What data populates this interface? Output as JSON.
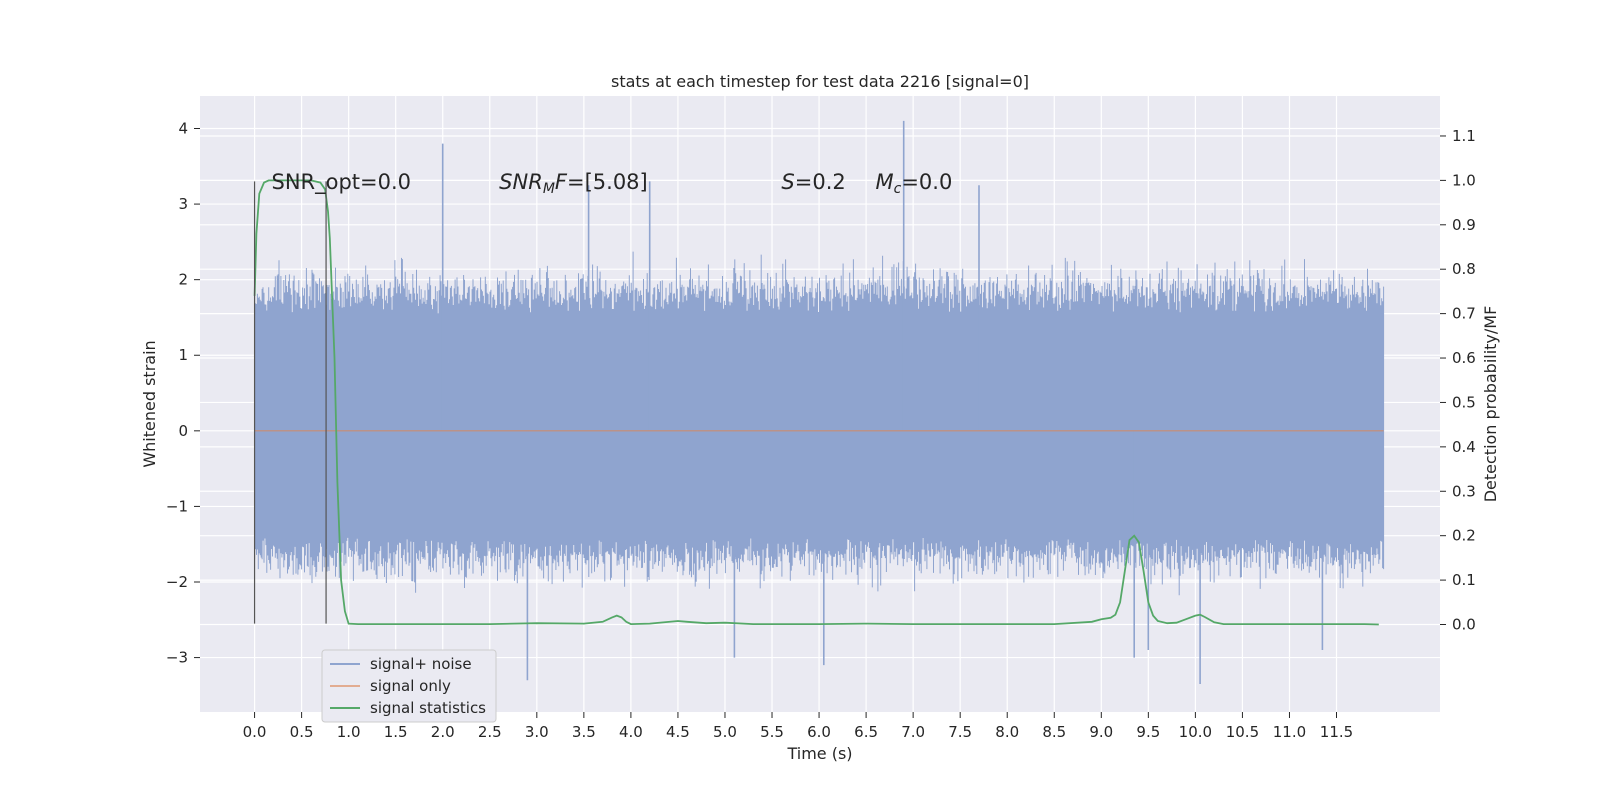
{
  "chart_data": {
    "type": "line",
    "title": "stats at each timestep for test data 2216 [signal=0]",
    "xlabel": "Time (s)",
    "ylabel_left": "Whitened strain",
    "ylabel_right": "Detection probability/MF",
    "xlim": [
      -0.58,
      12.6
    ],
    "ylim_left": [
      -3.72,
      4.43
    ],
    "ylim_right": [
      -0.197,
      1.19
    ],
    "xticks": [
      0.0,
      0.5,
      1.0,
      1.5,
      2.0,
      2.5,
      3.0,
      3.5,
      4.0,
      4.5,
      5.0,
      5.5,
      6.0,
      6.5,
      7.0,
      7.5,
      8.0,
      8.5,
      9.0,
      9.5,
      10.0,
      10.5,
      11.0,
      11.5
    ],
    "xtick_labels": [
      "0.0",
      "0.5",
      "1.0",
      "1.5",
      "2.0",
      "2.5",
      "3.0",
      "3.5",
      "4.0",
      "4.5",
      "5.0",
      "5.5",
      "6.0",
      "6.5",
      "7.0",
      "7.5",
      "8.0",
      "8.5",
      "9.0",
      "9.5",
      "10.0",
      "10.5",
      "11.0",
      "11.5"
    ],
    "yticks_left": [
      -3,
      -2,
      -1,
      0,
      1,
      2,
      3,
      4
    ],
    "ytick_labels_left": [
      "−3",
      "−2",
      "−1",
      "0",
      "1",
      "2",
      "3",
      "4"
    ],
    "yticks_right": [
      0.0,
      0.1,
      0.2,
      0.3,
      0.4,
      0.5,
      0.6,
      0.7,
      0.8,
      0.9,
      1.0,
      1.1
    ],
    "ytick_labels_right": [
      "0.0",
      "0.1",
      "0.2",
      "0.3",
      "0.4",
      "0.5",
      "0.6",
      "0.7",
      "0.8",
      "0.9",
      "1.0",
      "1.1"
    ],
    "grid": true,
    "legend_position": "bottom-left",
    "series": [
      {
        "name": "signal+ noise",
        "axis": "left",
        "color": "#8fa4cf",
        "kind": "dense noise band",
        "time_range": [
          0.0,
          12.0
        ],
        "core_band": [
          -1.4,
          1.55
        ],
        "typical_extent": [
          -2.3,
          2.2
        ],
        "peaks": [
          {
            "t": 2.0,
            "y": 3.8
          },
          {
            "t": 6.9,
            "y": 4.1
          },
          {
            "t": 3.55,
            "y": 3.25
          },
          {
            "t": 4.2,
            "y": 3.3
          },
          {
            "t": 7.7,
            "y": 3.25
          },
          {
            "t": 2.9,
            "y": -3.3
          },
          {
            "t": 10.05,
            "y": -3.35
          },
          {
            "t": 6.05,
            "y": -3.1
          },
          {
            "t": 5.1,
            "y": -3.0
          },
          {
            "t": 9.35,
            "y": -3.0
          },
          {
            "t": 11.35,
            "y": -2.9
          },
          {
            "t": 9.5,
            "y": -2.9
          }
        ]
      },
      {
        "name": "signal only",
        "axis": "left",
        "color": "#dd8452",
        "x": [
          0.0,
          12.0
        ],
        "y": [
          0.0,
          0.0
        ]
      },
      {
        "name": "signal statistics",
        "axis": "right",
        "color": "#55a868",
        "x": [
          0.0,
          0.02,
          0.05,
          0.1,
          0.15,
          0.2,
          0.3,
          0.4,
          0.5,
          0.6,
          0.7,
          0.75,
          0.78,
          0.8,
          0.85,
          0.88,
          0.92,
          0.96,
          1.0,
          1.1,
          1.5,
          2.0,
          2.5,
          3.0,
          3.5,
          3.7,
          3.8,
          3.85,
          3.9,
          3.95,
          4.0,
          4.2,
          4.5,
          4.6,
          4.8,
          5.0,
          5.3,
          6.0,
          6.5,
          7.0,
          7.5,
          8.0,
          8.5,
          8.9,
          9.0,
          9.1,
          9.15,
          9.2,
          9.25,
          9.3,
          9.35,
          9.4,
          9.45,
          9.5,
          9.55,
          9.6,
          9.7,
          9.8,
          9.9,
          10.0,
          10.05,
          10.1,
          10.2,
          10.3,
          10.5,
          11.0,
          11.5,
          11.8,
          11.95
        ],
        "y": [
          0.74,
          0.88,
          0.97,
          0.995,
          1.0,
          1.0,
          1.0,
          1.0,
          1.0,
          1.0,
          0.995,
          0.98,
          0.93,
          0.87,
          0.6,
          0.32,
          0.1,
          0.03,
          0.002,
          0.001,
          0.001,
          0.001,
          0.001,
          0.003,
          0.002,
          0.006,
          0.016,
          0.02,
          0.016,
          0.006,
          0.001,
          0.002,
          0.008,
          0.006,
          0.003,
          0.004,
          0.001,
          0.001,
          0.002,
          0.001,
          0.001,
          0.001,
          0.001,
          0.006,
          0.012,
          0.015,
          0.022,
          0.05,
          0.12,
          0.19,
          0.2,
          0.185,
          0.12,
          0.05,
          0.02,
          0.008,
          0.003,
          0.004,
          0.012,
          0.02,
          0.022,
          0.017,
          0.005,
          0.001,
          0.001,
          0.001,
          0.001,
          0.001,
          0.0
        ]
      }
    ],
    "vertical_markers": [
      {
        "x": 0.0,
        "y_range": [
          -2.55,
          3.3
        ],
        "color": "#555555"
      },
      {
        "x": 0.76,
        "y_range": [
          -2.55,
          3.3
        ],
        "color": "#555555"
      }
    ],
    "annotations": [
      {
        "id": "snr-opt",
        "text": "SNR_opt=0.0",
        "x": 0.18,
        "y": 3.2
      },
      {
        "id": "snr-mf",
        "text": "SNR_MF=[5.08]",
        "x": 2.6,
        "y": 3.2
      },
      {
        "id": "s-value",
        "text": "S=0.2",
        "x": 5.6,
        "y": 3.2
      },
      {
        "id": "mc-value",
        "text": "M_c=0.0",
        "x": 6.6,
        "y": 3.2
      }
    ]
  }
}
